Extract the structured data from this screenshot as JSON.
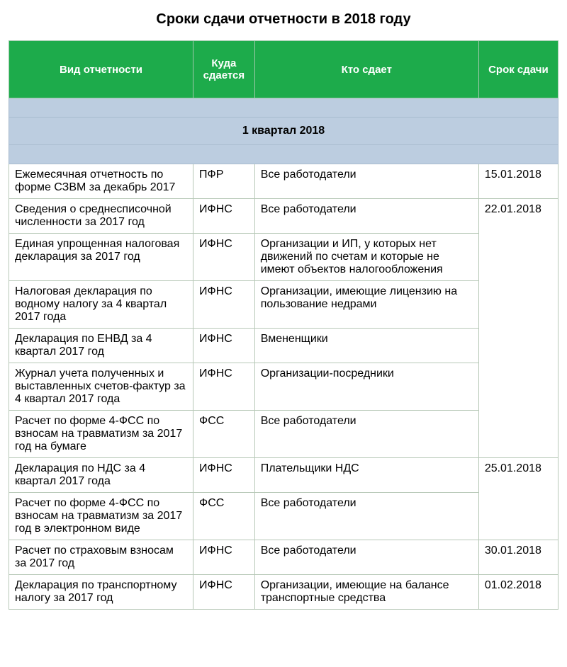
{
  "title": "Сроки сдачи отчетности в 2018 году",
  "headers": {
    "type": "Вид отчетности",
    "where": "Куда сдается",
    "who": "Кто сдает",
    "deadline": "Срок сдачи"
  },
  "section_label": "1 квартал 2018",
  "colors": {
    "header_bg": "#1dab4b",
    "header_text": "#ffffff",
    "section_bg": "#bccde0",
    "border": "#b7c8b7"
  },
  "rows": {
    "r1": {
      "type": "Ежемесячная отчетность по форме СЗВМ за декабрь 2017",
      "where": "ПФР",
      "who": "Все работодатели",
      "deadline": "15.01.2018"
    },
    "r2": {
      "type": "Сведения о среднесписочной численности за 2017 год",
      "where": "ИФНС",
      "who": "Все работодатели",
      "deadline": "22.01.2018"
    },
    "r3": {
      "type": "Единая упрощенная налоговая декларация за 2017 год",
      "where": "ИФНС",
      "who": "Организации и ИП, у которых нет движений по счетам и которые не имеют объектов налогообложения"
    },
    "r4": {
      "type": "Налоговая декларация по водному налогу за 4 квартал 2017 года",
      "where": "ИФНС",
      "who": "Организации, имеющие лицензию на пользование недрами"
    },
    "r5": {
      "type": "Декларация по ЕНВД за 4 квартал 2017 год",
      "where": "ИФНС",
      "who": "Вмененщики"
    },
    "r6": {
      "type": "Журнал учета полученных и выставленных счетов-фактур за 4 квартал 2017 года",
      "where": "ИФНС",
      "who": "Организации-посредники"
    },
    "r7": {
      "type": "Расчет по форме 4-ФСС по взносам на травматизм за 2017 год на бумаге",
      "where": "ФСС",
      "who": "Все работодатели"
    },
    "r8": {
      "type": "Декларация по НДС за 4 квартал 2017 года",
      "where": "ИФНС",
      "who": "Плательщики НДС",
      "deadline": "25.01.2018"
    },
    "r9": {
      "type": "Расчет по форме 4-ФСС по взносам на травматизм за 2017 год в электронном виде",
      "where": "ФСС",
      "who": "Все работодатели"
    },
    "r10": {
      "type": "Расчет по страховым взносам за 2017 год",
      "where": "ИФНС",
      "who": "Все работодатели",
      "deadline": "30.01.2018"
    },
    "r11": {
      "type": "Декларация по транспортному налогу за 2017 год",
      "where": "ИФНС",
      "who": "Организации, имеющие на балансе транспортные средства",
      "deadline": "01.02.2018"
    }
  }
}
